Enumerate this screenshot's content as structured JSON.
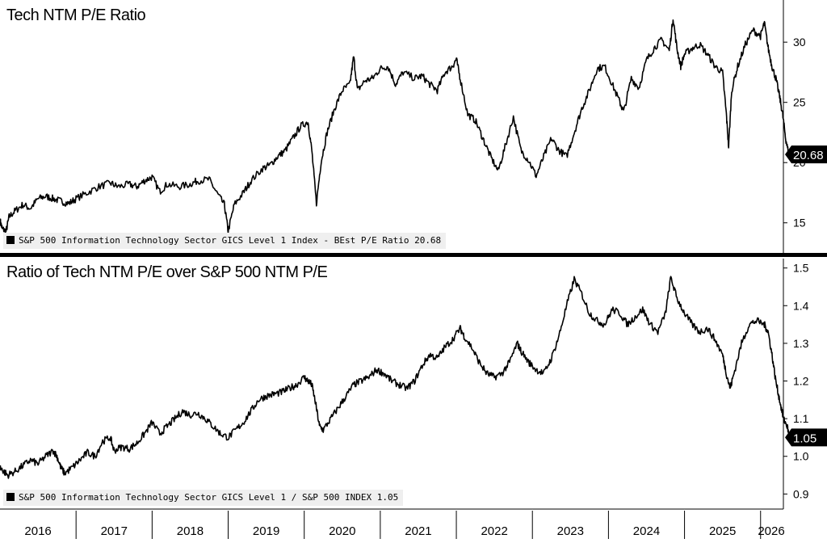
{
  "chart_data": [
    {
      "type": "line",
      "title": "Tech NTM P/E Ratio",
      "y_axis": {
        "min": 12.5,
        "max": 33.5,
        "ticks": [
          15,
          20,
          25,
          30
        ],
        "side": "right"
      },
      "x_axis": {
        "min": 2016.0,
        "max": 2026.3
      },
      "last_value_label": "20.68",
      "legend": "S&P 500 Information Technology Sector GICS Level 1 Index - BEst P/E Ratio 20.68",
      "series": [
        {
          "name": "S&P 500 Information Technology Sector GICS Level 1 Index - BEst P/E Ratio",
          "points": [
            [
              2016.0,
              15.2
            ],
            [
              2016.03,
              14.5
            ],
            [
              2016.08,
              14.3
            ],
            [
              2016.12,
              15.5
            ],
            [
              2016.2,
              16.0
            ],
            [
              2016.3,
              16.5
            ],
            [
              2016.4,
              16.2
            ],
            [
              2016.5,
              17.0
            ],
            [
              2016.6,
              17.2
            ],
            [
              2016.7,
              17.0
            ],
            [
              2016.8,
              16.8
            ],
            [
              2016.9,
              16.6
            ],
            [
              2017.0,
              17.0
            ],
            [
              2017.15,
              17.5
            ],
            [
              2017.3,
              18.0
            ],
            [
              2017.45,
              18.3
            ],
            [
              2017.55,
              18.0
            ],
            [
              2017.7,
              18.2
            ],
            [
              2017.8,
              18.0
            ],
            [
              2017.9,
              18.5
            ],
            [
              2018.0,
              18.8
            ],
            [
              2018.1,
              17.6
            ],
            [
              2018.2,
              18.2
            ],
            [
              2018.35,
              18.0
            ],
            [
              2018.5,
              18.2
            ],
            [
              2018.6,
              18.5
            ],
            [
              2018.75,
              18.6
            ],
            [
              2018.85,
              17.5
            ],
            [
              2018.95,
              16.5
            ],
            [
              2019.0,
              14.3
            ],
            [
              2019.08,
              16.5
            ],
            [
              2019.2,
              17.5
            ],
            [
              2019.3,
              18.5
            ],
            [
              2019.45,
              19.5
            ],
            [
              2019.55,
              19.8
            ],
            [
              2019.65,
              20.5
            ],
            [
              2019.75,
              21.0
            ],
            [
              2019.85,
              22.0
            ],
            [
              2019.95,
              23.0
            ],
            [
              2020.05,
              23.4
            ],
            [
              2020.1,
              21.0
            ],
            [
              2020.16,
              16.6
            ],
            [
              2020.22,
              20.0
            ],
            [
              2020.3,
              22.5
            ],
            [
              2020.4,
              24.5
            ],
            [
              2020.5,
              26.0
            ],
            [
              2020.6,
              26.5
            ],
            [
              2020.65,
              28.8
            ],
            [
              2020.7,
              26.0
            ],
            [
              2020.8,
              26.8
            ],
            [
              2020.9,
              27.0
            ],
            [
              2021.0,
              27.8
            ],
            [
              2021.1,
              28.0
            ],
            [
              2021.2,
              26.5
            ],
            [
              2021.3,
              27.5
            ],
            [
              2021.45,
              27.0
            ],
            [
              2021.55,
              27.2
            ],
            [
              2021.65,
              26.5
            ],
            [
              2021.75,
              26.0
            ],
            [
              2021.85,
              27.5
            ],
            [
              2021.95,
              28.0
            ],
            [
              2022.0,
              28.6
            ],
            [
              2022.05,
              27.0
            ],
            [
              2022.15,
              24.0
            ],
            [
              2022.25,
              23.5
            ],
            [
              2022.35,
              22.0
            ],
            [
              2022.45,
              20.5
            ],
            [
              2022.55,
              19.3
            ],
            [
              2022.65,
              21.5
            ],
            [
              2022.75,
              23.8
            ],
            [
              2022.85,
              21.0
            ],
            [
              2022.95,
              20.2
            ],
            [
              2023.05,
              18.9
            ],
            [
              2023.15,
              20.5
            ],
            [
              2023.25,
              22.0
            ],
            [
              2023.35,
              21.0
            ],
            [
              2023.45,
              20.5
            ],
            [
              2023.55,
              22.5
            ],
            [
              2023.65,
              24.5
            ],
            [
              2023.75,
              26.0
            ],
            [
              2023.85,
              27.8
            ],
            [
              2023.95,
              28.0
            ],
            [
              2024.05,
              26.5
            ],
            [
              2024.15,
              25.0
            ],
            [
              2024.2,
              24.2
            ],
            [
              2024.3,
              27.0
            ],
            [
              2024.4,
              26.2
            ],
            [
              2024.5,
              28.5
            ],
            [
              2024.6,
              29.5
            ],
            [
              2024.7,
              30.2
            ],
            [
              2024.8,
              29.3
            ],
            [
              2024.85,
              32.0
            ],
            [
              2024.9,
              29.5
            ],
            [
              2024.95,
              28.0
            ],
            [
              2025.0,
              29.0
            ],
            [
              2025.1,
              29.5
            ],
            [
              2025.2,
              29.8
            ],
            [
              2025.3,
              29.0
            ],
            [
              2025.4,
              28.0
            ],
            [
              2025.5,
              27.5
            ],
            [
              2025.55,
              24.0
            ],
            [
              2025.58,
              21.3
            ],
            [
              2025.62,
              26.0
            ],
            [
              2025.7,
              28.0
            ],
            [
              2025.8,
              29.8
            ],
            [
              2025.9,
              31.0
            ],
            [
              2026.0,
              30.5
            ],
            [
              2026.05,
              31.6
            ],
            [
              2026.1,
              29.5
            ],
            [
              2026.15,
              28.0
            ],
            [
              2026.2,
              27.0
            ],
            [
              2026.25,
              25.5
            ],
            [
              2026.29,
              24.0
            ],
            [
              2026.33,
              22.0
            ],
            [
              2026.37,
              20.68
            ]
          ]
        }
      ]
    },
    {
      "type": "line",
      "title": "Ratio of Tech NTM P/E over S&P 500 NTM P/E",
      "y_axis": {
        "min": 0.86,
        "max": 1.525,
        "ticks": [
          0.9,
          1.0,
          1.1,
          1.2,
          1.3,
          1.4,
          1.5
        ],
        "side": "right"
      },
      "x_axis": {
        "min": 2016.0,
        "max": 2026.3
      },
      "last_value_label": "1.05",
      "legend": "S&P 500 Information Technology Sector GICS Level 1 / S&P 500 INDEX 1.05",
      "series": [
        {
          "name": "S&P 500 Information Technology Sector GICS Level 1 / S&P 500 INDEX",
          "points": [
            [
              2016.0,
              0.97
            ],
            [
              2016.05,
              0.96
            ],
            [
              2016.1,
              0.95
            ],
            [
              2016.2,
              0.96
            ],
            [
              2016.3,
              0.975
            ],
            [
              2016.4,
              0.99
            ],
            [
              2016.5,
              0.98
            ],
            [
              2016.6,
              1.0
            ],
            [
              2016.7,
              1.015
            ],
            [
              2016.75,
              1.0
            ],
            [
              2016.8,
              0.97
            ],
            [
              2016.85,
              0.955
            ],
            [
              2016.95,
              0.97
            ],
            [
              2017.05,
              0.99
            ],
            [
              2017.15,
              1.01
            ],
            [
              2017.25,
              1.0
            ],
            [
              2017.35,
              1.04
            ],
            [
              2017.45,
              1.05
            ],
            [
              2017.5,
              1.015
            ],
            [
              2017.6,
              1.025
            ],
            [
              2017.7,
              1.02
            ],
            [
              2017.8,
              1.035
            ],
            [
              2017.9,
              1.06
            ],
            [
              2018.0,
              1.09
            ],
            [
              2018.1,
              1.06
            ],
            [
              2018.2,
              1.08
            ],
            [
              2018.3,
              1.1
            ],
            [
              2018.4,
              1.12
            ],
            [
              2018.5,
              1.11
            ],
            [
              2018.6,
              1.115
            ],
            [
              2018.7,
              1.1
            ],
            [
              2018.8,
              1.08
            ],
            [
              2018.9,
              1.06
            ],
            [
              2019.0,
              1.05
            ],
            [
              2019.1,
              1.07
            ],
            [
              2019.2,
              1.09
            ],
            [
              2019.3,
              1.12
            ],
            [
              2019.4,
              1.15
            ],
            [
              2019.5,
              1.16
            ],
            [
              2019.6,
              1.165
            ],
            [
              2019.7,
              1.17
            ],
            [
              2019.8,
              1.18
            ],
            [
              2019.9,
              1.19
            ],
            [
              2020.0,
              1.21
            ],
            [
              2020.05,
              1.2
            ],
            [
              2020.1,
              1.19
            ],
            [
              2020.15,
              1.14
            ],
            [
              2020.2,
              1.08
            ],
            [
              2020.25,
              1.07
            ],
            [
              2020.35,
              1.1
            ],
            [
              2020.45,
              1.13
            ],
            [
              2020.55,
              1.16
            ],
            [
              2020.65,
              1.19
            ],
            [
              2020.75,
              1.2
            ],
            [
              2020.85,
              1.21
            ],
            [
              2020.95,
              1.23
            ],
            [
              2021.05,
              1.22
            ],
            [
              2021.15,
              1.2
            ],
            [
              2021.25,
              1.19
            ],
            [
              2021.35,
              1.18
            ],
            [
              2021.45,
              1.2
            ],
            [
              2021.55,
              1.24
            ],
            [
              2021.65,
              1.27
            ],
            [
              2021.75,
              1.26
            ],
            [
              2021.85,
              1.29
            ],
            [
              2021.95,
              1.31
            ],
            [
              2022.05,
              1.34
            ],
            [
              2022.1,
              1.32
            ],
            [
              2022.2,
              1.29
            ],
            [
              2022.3,
              1.25
            ],
            [
              2022.4,
              1.22
            ],
            [
              2022.5,
              1.21
            ],
            [
              2022.6,
              1.22
            ],
            [
              2022.7,
              1.25
            ],
            [
              2022.8,
              1.3
            ],
            [
              2022.85,
              1.28
            ],
            [
              2022.95,
              1.25
            ],
            [
              2023.05,
              1.23
            ],
            [
              2023.15,
              1.22
            ],
            [
              2023.25,
              1.26
            ],
            [
              2023.35,
              1.32
            ],
            [
              2023.45,
              1.4
            ],
            [
              2023.55,
              1.47
            ],
            [
              2023.65,
              1.43
            ],
            [
              2023.75,
              1.38
            ],
            [
              2023.85,
              1.36
            ],
            [
              2023.95,
              1.35
            ],
            [
              2024.05,
              1.39
            ],
            [
              2024.15,
              1.38
            ],
            [
              2024.25,
              1.35
            ],
            [
              2024.35,
              1.37
            ],
            [
              2024.45,
              1.39
            ],
            [
              2024.55,
              1.35
            ],
            [
              2024.65,
              1.33
            ],
            [
              2024.75,
              1.38
            ],
            [
              2024.82,
              1.475
            ],
            [
              2024.9,
              1.42
            ],
            [
              2025.0,
              1.38
            ],
            [
              2025.1,
              1.35
            ],
            [
              2025.2,
              1.33
            ],
            [
              2025.3,
              1.34
            ],
            [
              2025.4,
              1.31
            ],
            [
              2025.5,
              1.27
            ],
            [
              2025.55,
              1.22
            ],
            [
              2025.6,
              1.18
            ],
            [
              2025.65,
              1.22
            ],
            [
              2025.75,
              1.3
            ],
            [
              2025.85,
              1.35
            ],
            [
              2025.95,
              1.36
            ],
            [
              2026.05,
              1.35
            ],
            [
              2026.1,
              1.33
            ],
            [
              2026.15,
              1.27
            ],
            [
              2026.2,
              1.2
            ],
            [
              2026.25,
              1.15
            ],
            [
              2026.3,
              1.1
            ],
            [
              2026.35,
              1.08
            ],
            [
              2026.38,
              1.05
            ]
          ]
        }
      ]
    }
  ],
  "x_labels": [
    "2016",
    "2017",
    "2018",
    "2019",
    "2020",
    "2021",
    "2022",
    "2023",
    "2024",
    "2025",
    "2026"
  ],
  "colors": {
    "line": "#000000",
    "legend_bg": "#efefef",
    "background": "#ffffff"
  }
}
